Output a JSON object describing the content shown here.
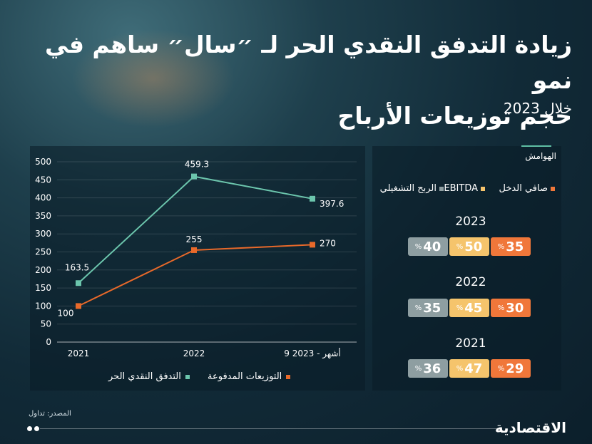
{
  "headline": {
    "line1": "زيادة التدفق النقدي الحر لـ ״سال״ ساهم في نمو",
    "line2": "حجم توزيعات الأرباح",
    "subtitle": "خلال 2023"
  },
  "colors": {
    "free_cash_flow": "#6cc6ad",
    "dividends": "#e8692a",
    "net_income": "#f0773a",
    "ebitda": "#f5c46c",
    "operating_profit": "#8e9ea1"
  },
  "chart_data": {
    "type": "line",
    "categories": [
      "2021",
      "2022",
      "9 أشهر - 2023"
    ],
    "ylim": [
      0,
      500
    ],
    "yticks": [
      0,
      50,
      100,
      150,
      200,
      250,
      300,
      350,
      400,
      450,
      500
    ],
    "series": [
      {
        "name": "التدفق النقدي الحر",
        "values": [
          163.5,
          459.3,
          397.6
        ],
        "labels": [
          "163.5",
          "459.3",
          "397.6"
        ],
        "color": "#6cc6ad"
      },
      {
        "name": "التوزيعات المدفوعة",
        "values": [
          100,
          255,
          270
        ],
        "labels": [
          "100",
          "255",
          "270"
        ],
        "color": "#e8692a"
      }
    ],
    "grid": true,
    "legend": "bottom"
  },
  "margins": {
    "title": "الهوامش",
    "legend": {
      "net_income": "صافي الدخل",
      "ebitda": "EBITDA",
      "operating_profit": "الربح التشغيلي"
    },
    "pct_sign": "%",
    "years": [
      {
        "year": "2023",
        "net_income": 35,
        "ebitda": 50,
        "operating_profit": 40
      },
      {
        "year": "2022",
        "net_income": 30,
        "ebitda": 45,
        "operating_profit": 35
      },
      {
        "year": "2021",
        "net_income": 29,
        "ebitda": 47,
        "operating_profit": 36
      }
    ]
  },
  "footer": {
    "source": "المصدر: تداول",
    "brand": "الاقتصادية"
  }
}
